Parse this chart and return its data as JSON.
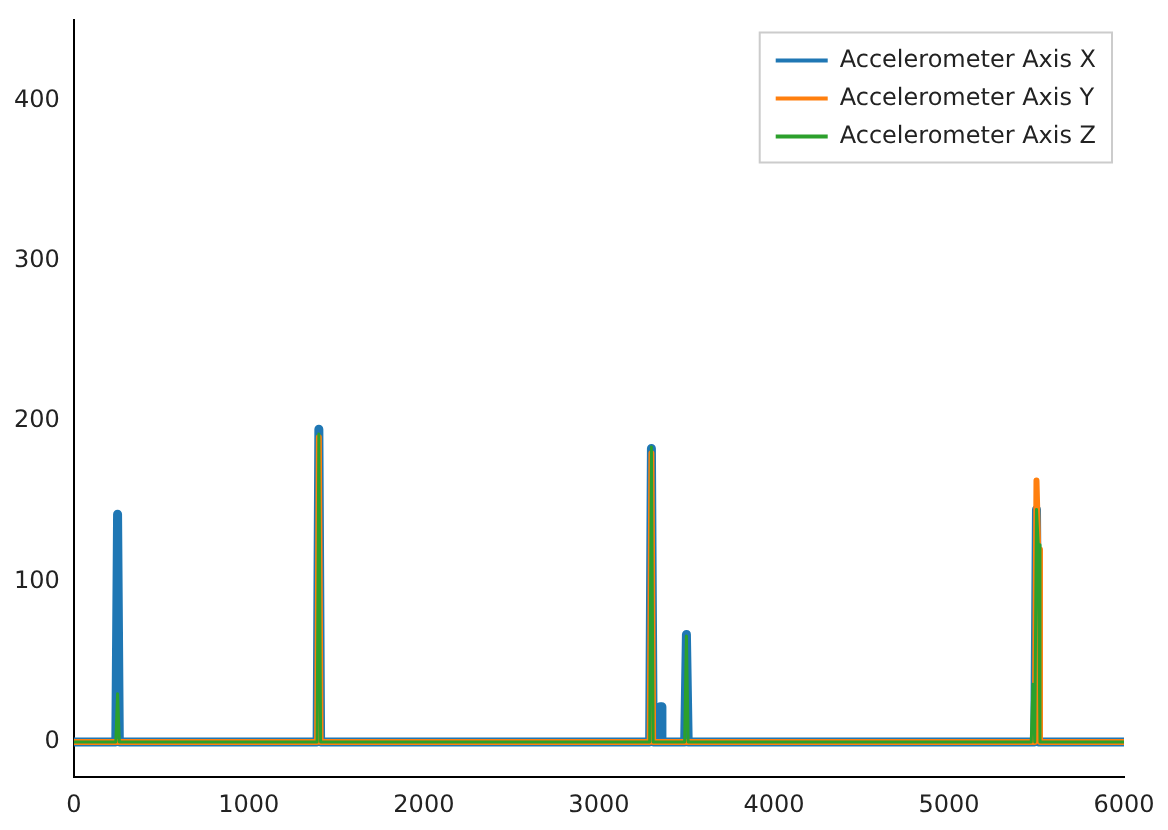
{
  "chart_data": {
    "type": "line",
    "x": [
      0,
      240,
      250,
      260,
      1390,
      1400,
      1410,
      3290,
      3300,
      3310,
      3340,
      3350,
      3360,
      3490,
      3500,
      3510,
      5470,
      5480,
      5490,
      5500,
      5510,
      5520,
      6000
    ],
    "series": [
      {
        "name": "Accelerometer Axis X",
        "color": "#1f77b4",
        "values": [
          0,
          0,
          142,
          0,
          0,
          195,
          0,
          0,
          183,
          0,
          0,
          22,
          0,
          0,
          67,
          0,
          0,
          0,
          0,
          145,
          0,
          0,
          0
        ]
      },
      {
        "name": "Accelerometer Axis Y",
        "color": "#ff7f0e",
        "values": [
          0,
          0,
          0,
          0,
          0,
          190,
          0,
          0,
          180,
          0,
          0,
          0,
          0,
          0,
          0,
          0,
          0,
          0,
          0,
          163,
          120,
          0,
          0
        ]
      },
      {
        "name": "Accelerometer Axis Z",
        "color": "#2ca02c",
        "values": [
          0,
          0,
          30,
          0,
          0,
          192,
          0,
          0,
          184,
          0,
          0,
          0,
          0,
          0,
          66,
          0,
          0,
          36,
          0,
          145,
          123,
          0,
          0
        ]
      }
    ],
    "xlim": [
      0,
      6000
    ],
    "xticks": [
      0,
      1000,
      2000,
      3000,
      4000,
      5000,
      6000
    ],
    "ylim": [
      -22,
      450
    ],
    "yticks": [
      0,
      100,
      200,
      300,
      400
    ],
    "grid": false,
    "legend": "top right",
    "marker": "none",
    "line_style": "solid"
  }
}
